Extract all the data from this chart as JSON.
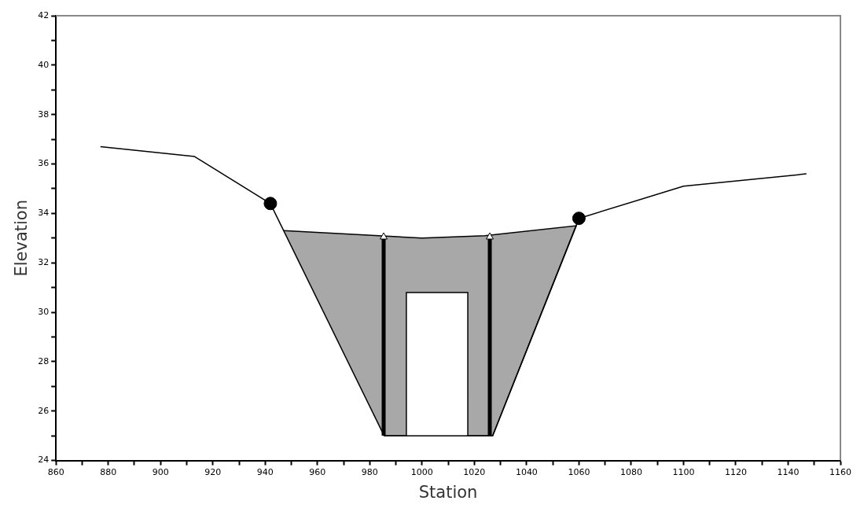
{
  "chart_data": {
    "type": "line",
    "xlabel": "Station",
    "ylabel": "Elevation",
    "xlim": [
      860,
      1160
    ],
    "ylim": [
      24,
      42
    ],
    "xticks": [
      860,
      {
        "value": 870,
        "label": null
      },
      880,
      {
        "value": 890,
        "label": null
      },
      900,
      {
        "value": 910,
        "label": null
      },
      920,
      {
        "value": 930,
        "label": null
      },
      940,
      {
        "value": 950,
        "label": null
      },
      960,
      {
        "value": 970,
        "label": null
      },
      980,
      {
        "value": 990,
        "label": null
      },
      1000,
      {
        "value": 1010,
        "label": null
      },
      1020,
      {
        "value": 1030,
        "label": null
      },
      1040,
      {
        "value": 1050,
        "label": null
      },
      1060,
      {
        "value": 1070,
        "label": null
      },
      1080,
      {
        "value": 1090,
        "label": null
      },
      1100,
      {
        "value": 1110,
        "label": null
      },
      1120,
      {
        "value": 1130,
        "label": null
      },
      1140,
      {
        "value": 1150,
        "label": null
      },
      1160
    ],
    "yticks": [
      24,
      {
        "value": 25,
        "label": null
      },
      26,
      {
        "value": 27,
        "label": null
      },
      28,
      {
        "value": 29,
        "label": null
      },
      30,
      {
        "value": 31,
        "label": null
      },
      32,
      {
        "value": 33,
        "label": null
      },
      34,
      {
        "value": 35,
        "label": null
      },
      36,
      {
        "value": 37,
        "label": null
      },
      38,
      {
        "value": 39,
        "label": null
      },
      40,
      {
        "value": 41,
        "label": null
      },
      42
    ],
    "grid": false,
    "legend": false,
    "series": [
      {
        "type": "area",
        "color": "#a8a8a8",
        "x": [
          947,
          1000,
          1024,
          1059,
          1027,
          985.5
        ],
        "values": [
          33.3,
          33.0,
          33.1,
          33.5,
          25,
          25
        ]
      },
      {
        "type": "area",
        "color": "#ffffff",
        "x": [
          994,
          994,
          1017.5,
          1017.5
        ],
        "values": [
          25,
          30.8,
          30.8,
          25
        ]
      },
      {
        "color": "#000000",
        "x": [
          877,
          913,
          942,
          985.5,
          1027,
          1060,
          1100,
          1147
        ],
        "values": [
          36.7,
          36.3,
          34.4,
          25,
          25,
          33.8,
          35.1,
          35.6
        ]
      },
      {
        "type": "scatter",
        "color": "#000000",
        "marker": "circle",
        "x": [
          942,
          1060
        ],
        "values": [
          34.4,
          33.8
        ]
      }
    ]
  }
}
